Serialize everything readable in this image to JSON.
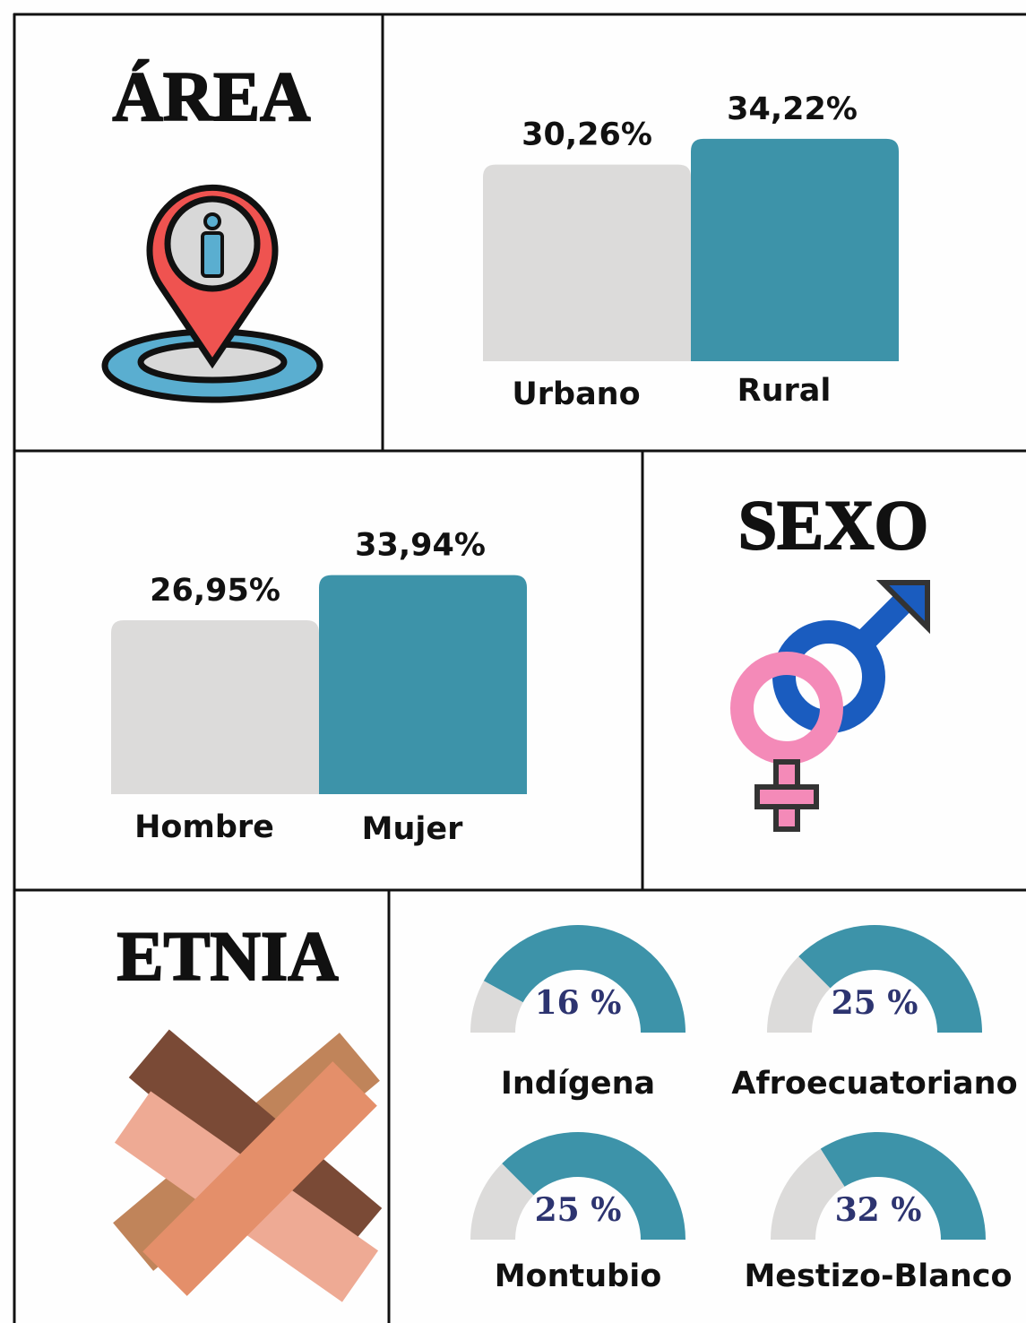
{
  "chart_data": [
    {
      "type": "bar",
      "title": "ÁREA",
      "categories": [
        "Urbano",
        "Rural"
      ],
      "values": [
        30.26,
        34.22
      ],
      "value_labels": [
        "30,26%",
        "34,22%"
      ],
      "colors": [
        "#dcdbda",
        "#3d93a9"
      ],
      "ylim": [
        0,
        40
      ]
    },
    {
      "type": "bar",
      "title": "SEXO",
      "categories": [
        "Hombre",
        "Mujer"
      ],
      "values": [
        26.95,
        33.94
      ],
      "value_labels": [
        "26,95%",
        "33,94%"
      ],
      "colors": [
        "#dcdbda",
        "#3d93a9"
      ],
      "ylim": [
        0,
        40
      ]
    },
    {
      "type": "gauge",
      "title": "ETNIA",
      "categories": [
        "Indígena",
        "Afroecuatoriano",
        "Montubio",
        "Mestizo-Blanco"
      ],
      "values": [
        16,
        25,
        25,
        32
      ],
      "value_labels": [
        "16 %",
        "25 %",
        "25 %",
        "32 %"
      ],
      "colors": [
        "#dcdbda",
        "#3d93a9"
      ],
      "ylim": [
        0,
        100
      ]
    }
  ]
}
